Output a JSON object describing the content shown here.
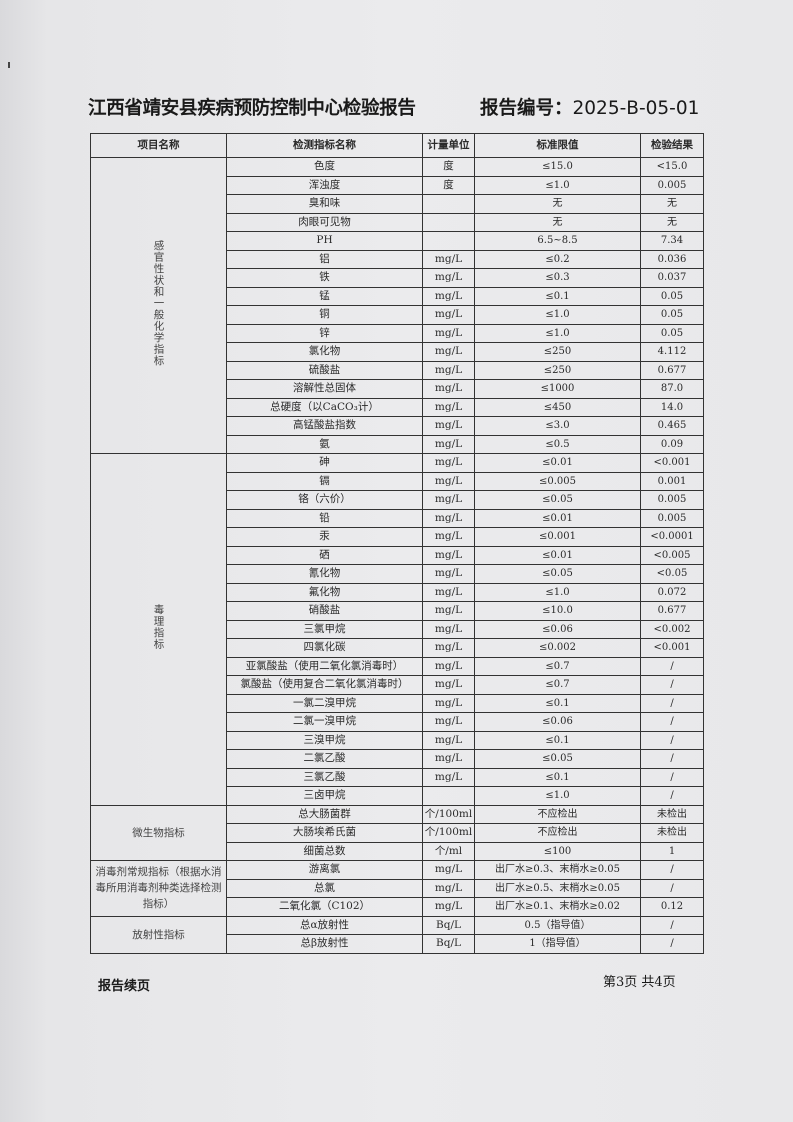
{
  "header": {
    "title": "江西省靖安县疾病预防控制中心检验报告",
    "report_no_label": "报告编号：",
    "report_no": "2025-B-05-01"
  },
  "columns": [
    "项目名称",
    "检测指标名称",
    "计量单位",
    "标准限值",
    "检验结果"
  ],
  "groups": [
    {
      "name": "感官性状和一般化学指标",
      "vertical": true,
      "rows": [
        [
          "色度",
          "度",
          "≤15.0",
          "<15.0"
        ],
        [
          "浑浊度",
          "度",
          "≤1.0",
          "0.005"
        ],
        [
          "臭和味",
          "",
          "无",
          "无"
        ],
        [
          "肉眼可见物",
          "",
          "无",
          "无"
        ],
        [
          "PH",
          "",
          "6.5~8.5",
          "7.34"
        ],
        [
          "铝",
          "mg/L",
          "≤0.2",
          "0.036"
        ],
        [
          "铁",
          "mg/L",
          "≤0.3",
          "0.037"
        ],
        [
          "锰",
          "mg/L",
          "≤0.1",
          "0.05"
        ],
        [
          "铜",
          "mg/L",
          "≤1.0",
          "0.05"
        ],
        [
          "锌",
          "mg/L",
          "≤1.0",
          "0.05"
        ],
        [
          "氯化物",
          "mg/L",
          "≤250",
          "4.112"
        ],
        [
          "硫酸盐",
          "mg/L",
          "≤250",
          "0.677"
        ],
        [
          "溶解性总固体",
          "mg/L",
          "≤1000",
          "87.0"
        ],
        [
          "总硬度（以CaCO₃计）",
          "mg/L",
          "≤450",
          "14.0"
        ],
        [
          "高锰酸盐指数",
          "mg/L",
          "≤3.0",
          "0.465"
        ],
        [
          "氨",
          "mg/L",
          "≤0.5",
          "0.09"
        ]
      ]
    },
    {
      "name": "毒理指标",
      "vertical": true,
      "rows": [
        [
          "砷",
          "mg/L",
          "≤0.01",
          "<0.001"
        ],
        [
          "镉",
          "mg/L",
          "≤0.005",
          "0.001"
        ],
        [
          "铬（六价）",
          "mg/L",
          "≤0.05",
          "0.005"
        ],
        [
          "铅",
          "mg/L",
          "≤0.01",
          "0.005"
        ],
        [
          "汞",
          "mg/L",
          "≤0.001",
          "<0.0001"
        ],
        [
          "硒",
          "mg/L",
          "≤0.01",
          "<0.005"
        ],
        [
          "氰化物",
          "mg/L",
          "≤0.05",
          "<0.05"
        ],
        [
          "氟化物",
          "mg/L",
          "≤1.0",
          "0.072"
        ],
        [
          "硝酸盐",
          "mg/L",
          "≤10.0",
          "0.677"
        ],
        [
          "三氯甲烷",
          "mg/L",
          "≤0.06",
          "<0.002"
        ],
        [
          "四氯化碳",
          "mg/L",
          "≤0.002",
          "<0.001"
        ],
        [
          "亚氯酸盐（使用二氧化氯消毒时）",
          "mg/L",
          "≤0.7",
          "/"
        ],
        [
          "氯酸盐（使用复合二氧化氯消毒时）",
          "mg/L",
          "≤0.7",
          "/"
        ],
        [
          "一氯二溴甲烷",
          "mg/L",
          "≤0.1",
          "/"
        ],
        [
          "二氯一溴甲烷",
          "mg/L",
          "≤0.06",
          "/"
        ],
        [
          "三溴甲烷",
          "mg/L",
          "≤0.1",
          "/"
        ],
        [
          "二氯乙酸",
          "mg/L",
          "≤0.05",
          "/"
        ],
        [
          "三氯乙酸",
          "mg/L",
          "≤0.1",
          "/"
        ],
        [
          "三卤甲烷",
          "",
          "≤1.0",
          "/"
        ]
      ]
    },
    {
      "name": "微生物指标",
      "vertical": false,
      "rows": [
        [
          "总大肠菌群",
          "个/100ml",
          "不应检出",
          "未检出"
        ],
        [
          "大肠埃希氏菌",
          "个/100ml",
          "不应检出",
          "未检出"
        ],
        [
          "细菌总数",
          "个/ml",
          "≤100",
          "1"
        ]
      ]
    },
    {
      "name": "消毒剂常规指标（根据水消毒所用消毒剂种类选择检测指标）",
      "vertical": false,
      "rows": [
        [
          "游离氯",
          "mg/L",
          "出厂水≥0.3、末梢水≥0.05",
          "/"
        ],
        [
          "总氯",
          "mg/L",
          "出厂水≥0.5、末梢水≥0.05",
          "/"
        ],
        [
          "二氧化氯（C102）",
          "mg/L",
          "出厂水≥0.1、末梢水≥0.02",
          "0.12"
        ]
      ]
    },
    {
      "name": "放射性指标",
      "vertical": false,
      "rows": [
        [
          "总α放射性",
          "Bq/L",
          "0.5（指导值）",
          "/"
        ],
        [
          "总β放射性",
          "Bq/L",
          "1（指导值）",
          "/"
        ]
      ]
    }
  ],
  "footer": {
    "left": "报告续页",
    "page": "第3页 共4页"
  }
}
